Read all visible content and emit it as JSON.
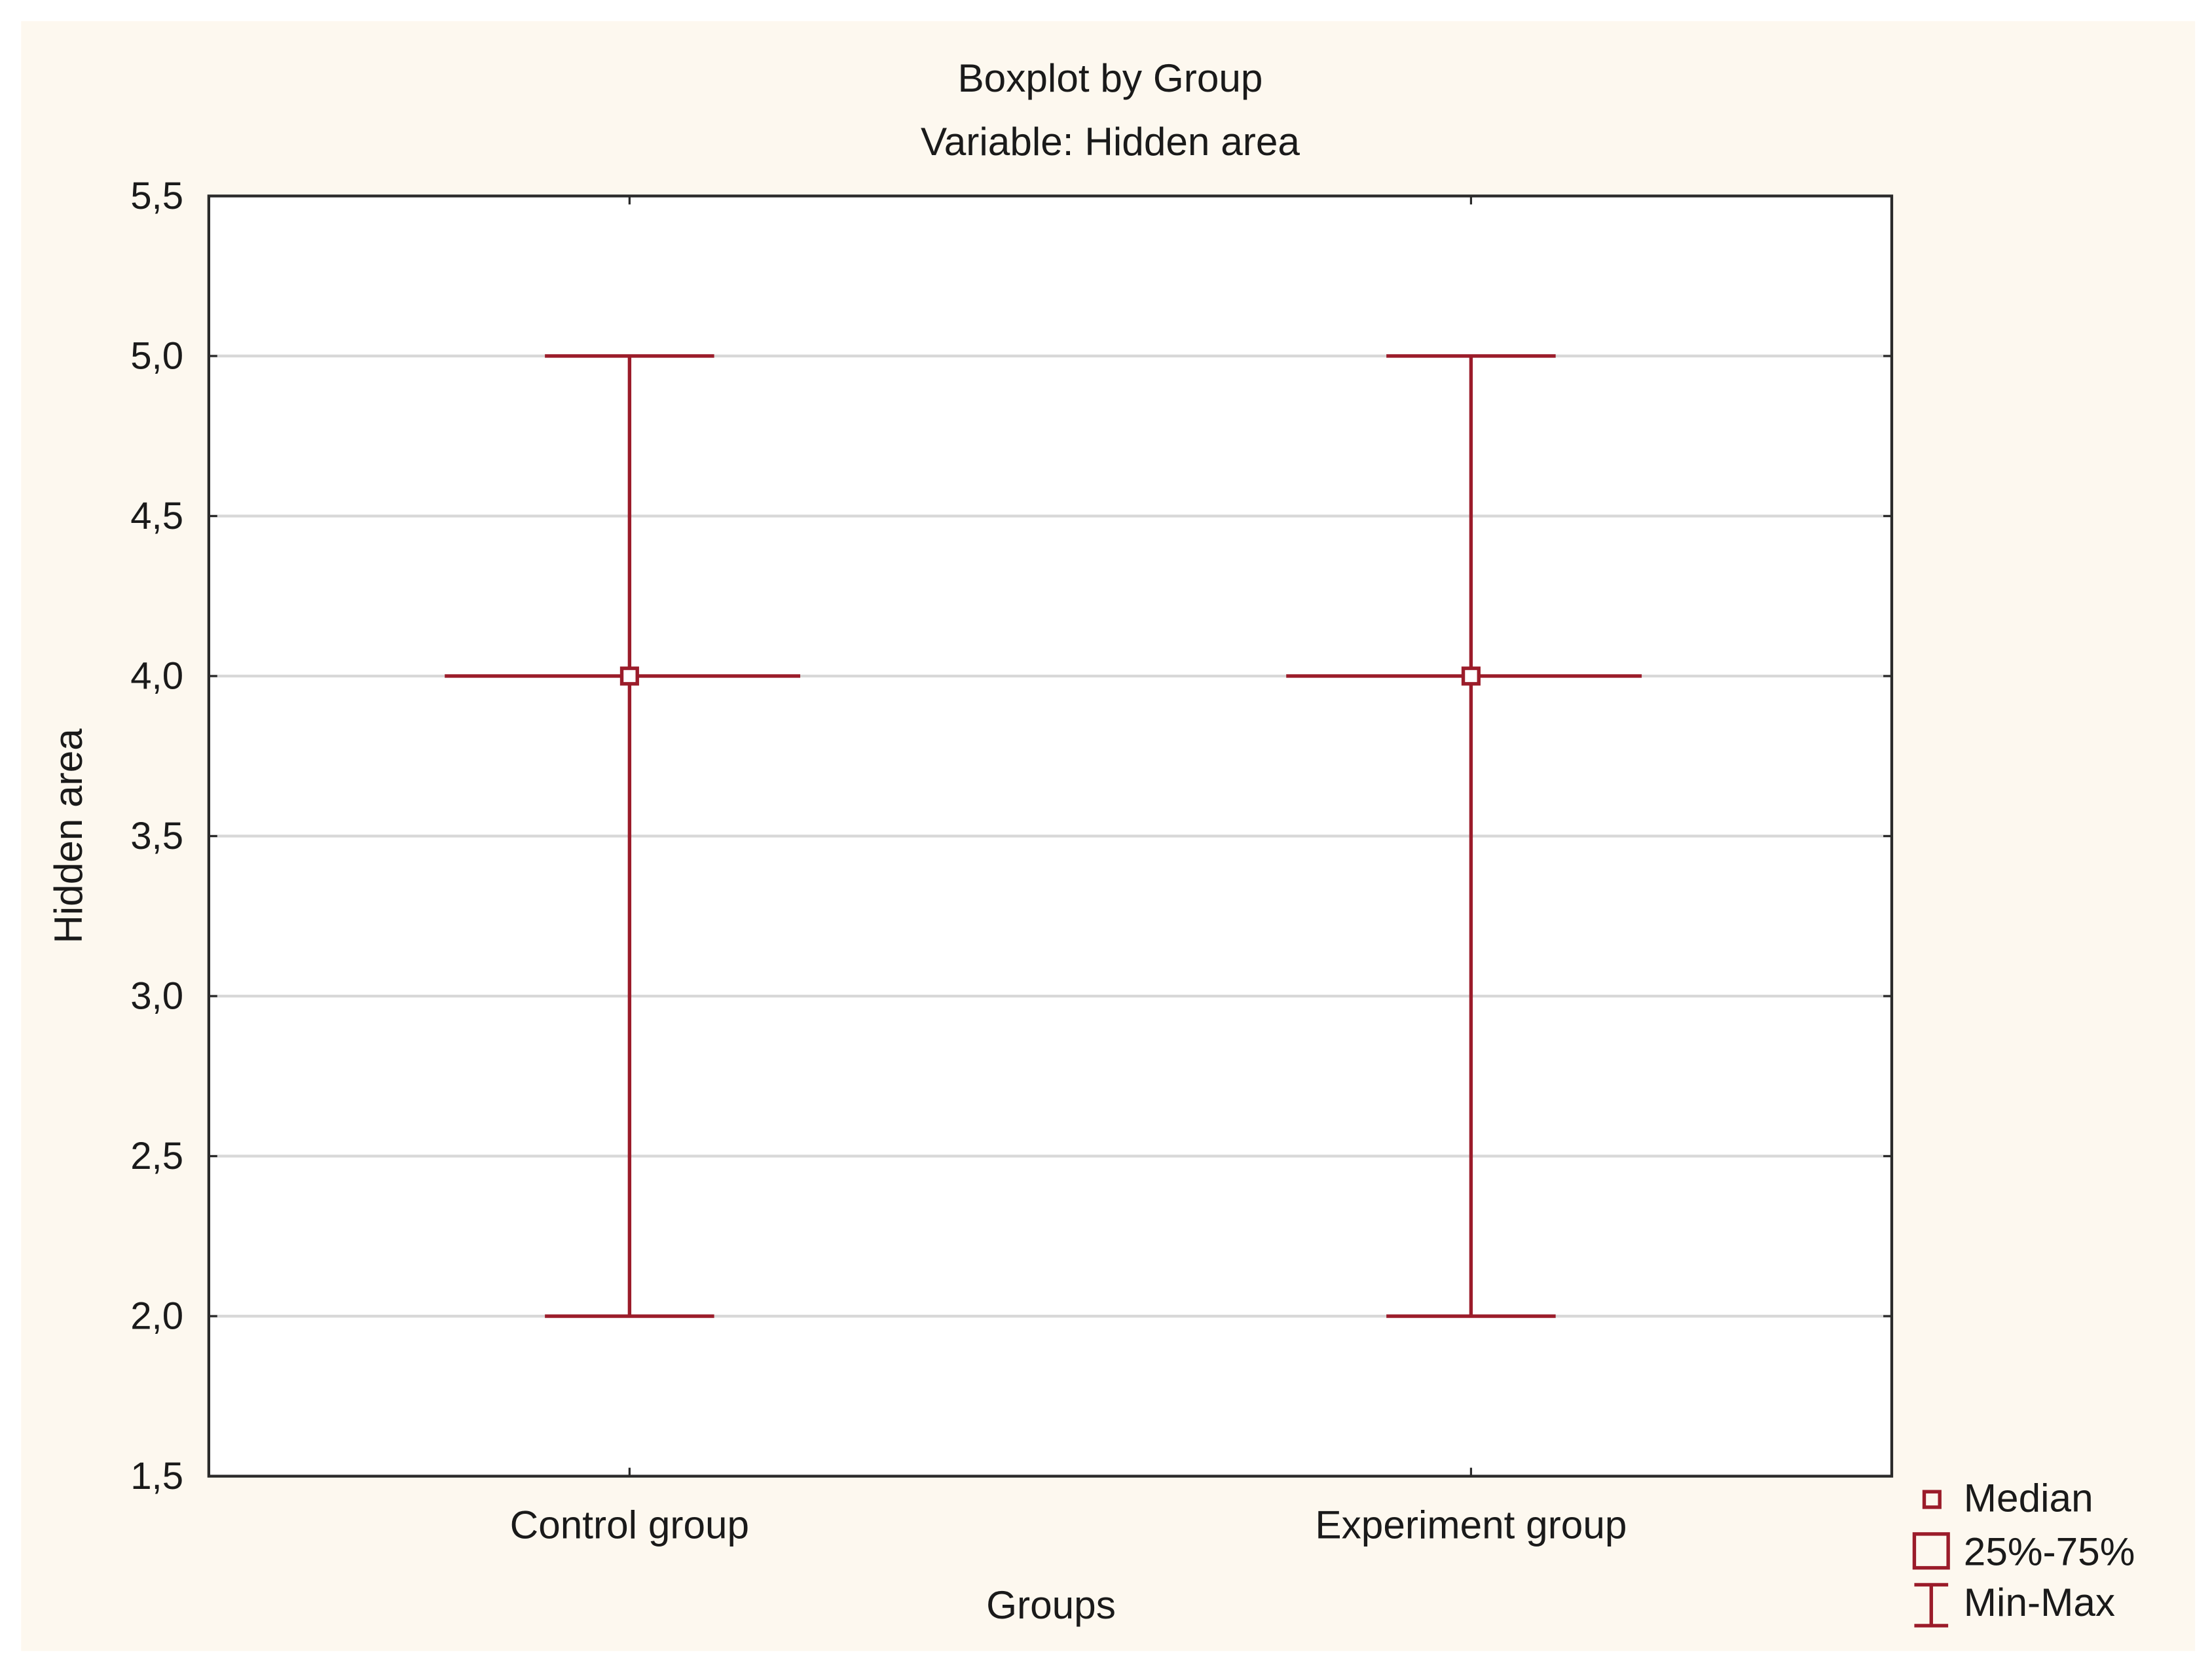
{
  "chart_data": {
    "type": "boxplot",
    "title": "Boxplot by Group",
    "subtitle": "Variable: Hidden area",
    "xlabel": "Groups",
    "ylabel": "Hidden area",
    "ylim": [
      1.5,
      5.5
    ],
    "yticks": [
      "1,5",
      "2,0",
      "2,5",
      "3,0",
      "3,5",
      "4,0",
      "4,5",
      "5,0",
      "5,5"
    ],
    "ytick_values": [
      1.5,
      2.0,
      2.5,
      3.0,
      3.5,
      4.0,
      4.5,
      5.0,
      5.5
    ],
    "grid": true,
    "categories": [
      "Control group",
      "Experiment group"
    ],
    "series": [
      {
        "category": "Control group",
        "median": 4.0,
        "q1": 4.0,
        "q3": 4.0,
        "min": 2.0,
        "max": 5.0
      },
      {
        "category": "Experiment group",
        "median": 4.0,
        "q1": 4.0,
        "q3": 4.0,
        "min": 2.0,
        "max": 5.0
      }
    ],
    "legend": {
      "placement": "bottom-right",
      "items": [
        {
          "symbol": "small-square",
          "label": "Median"
        },
        {
          "symbol": "square",
          "label": "25%-75%"
        },
        {
          "symbol": "i-beam",
          "label": "Min-Max"
        }
      ]
    },
    "colors": {
      "series": "#9b1c2a",
      "background": "#fdf8ef",
      "plot": "#ffffff",
      "grid": "#d8d8d8",
      "axis": "#2a2a2a"
    }
  }
}
